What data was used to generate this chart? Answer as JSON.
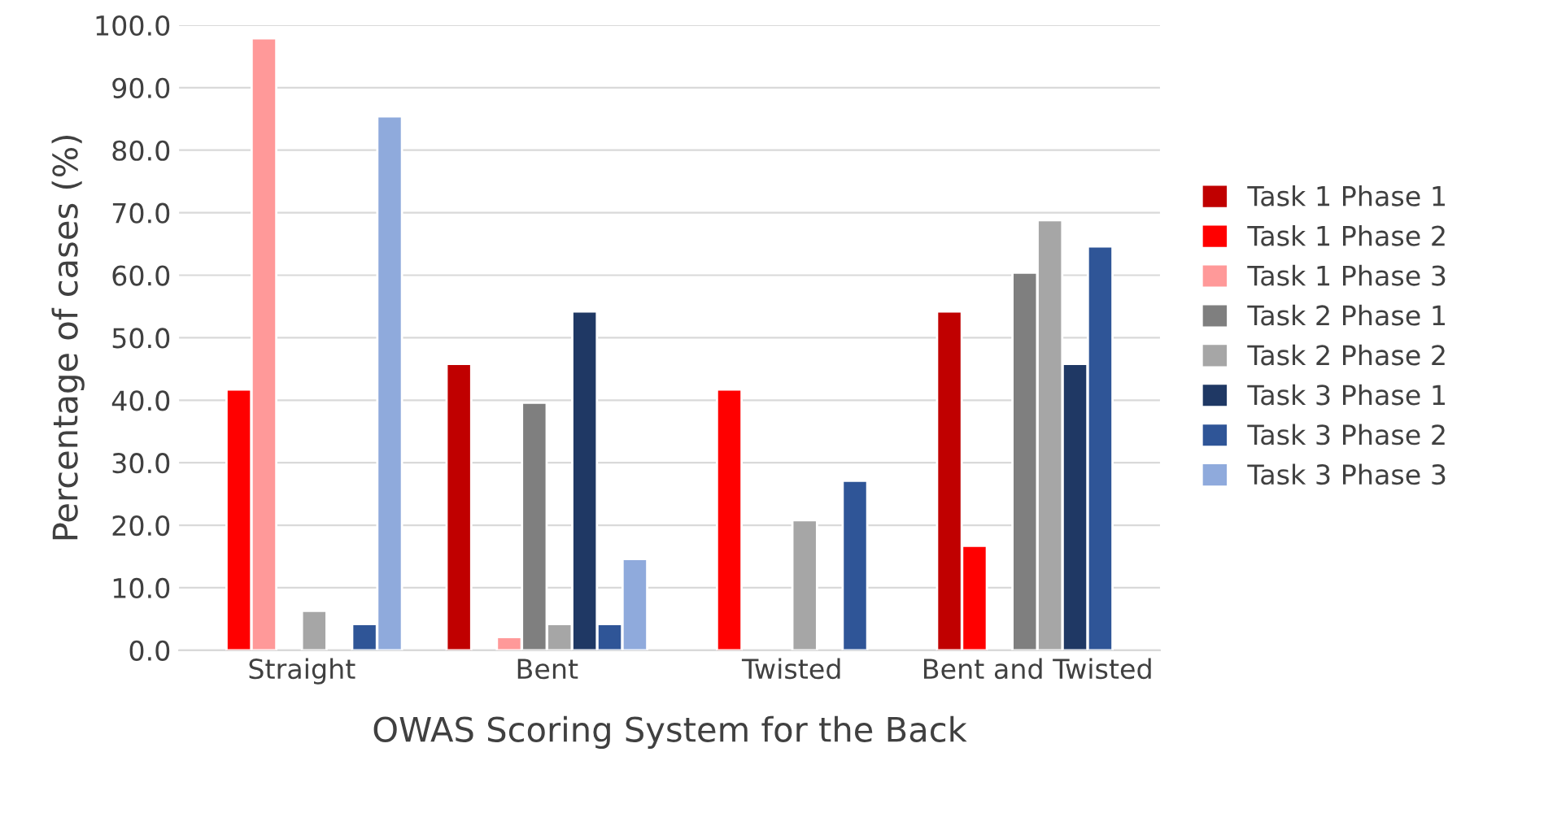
{
  "chart_data": {
    "type": "bar",
    "xlabel": "OWAS Scoring System for the Back",
    "ylabel": "Percentage of cases (%)",
    "categories": [
      "Straight",
      "Bent",
      "Twisted",
      "Bent and Twisted"
    ],
    "series": [
      {
        "name": "Task 1 Phase 1",
        "color": "#c00000",
        "values": [
          null,
          45.8,
          null,
          54.2
        ]
      },
      {
        "name": "Task 1 Phase 2",
        "color": "#ff0000",
        "values": [
          41.7,
          null,
          41.7,
          16.7
        ]
      },
      {
        "name": "Task 1 Phase 3",
        "color": "#ff9999",
        "values": [
          97.9,
          2.1,
          null,
          null
        ]
      },
      {
        "name": "Task 2 Phase 1",
        "color": "#7f7f7f",
        "values": [
          null,
          39.6,
          null,
          60.4
        ]
      },
      {
        "name": "Task 2 Phase 2",
        "color": "#a6a6a6",
        "values": [
          6.3,
          4.2,
          20.8,
          68.8
        ]
      },
      {
        "name": "Task 3 Phase 1",
        "color": "#1f3864",
        "values": [
          null,
          54.2,
          null,
          45.8
        ]
      },
      {
        "name": "Task 3 Phase 2",
        "color": "#2f5597",
        "values": [
          4.2,
          4.2,
          27.1,
          64.6
        ]
      },
      {
        "name": "Task 3 Phase 3",
        "color": "#8faadc",
        "values": [
          85.4,
          14.6,
          null,
          null
        ]
      }
    ],
    "ylim": [
      0,
      100
    ],
    "yticks": [
      {
        "value": 0,
        "label": "0.0"
      },
      {
        "value": 10,
        "label": "10.0"
      },
      {
        "value": 20,
        "label": "20.0"
      },
      {
        "value": 30,
        "label": "30.0"
      },
      {
        "value": 40,
        "label": "40.0"
      },
      {
        "value": 50,
        "label": "50.0"
      },
      {
        "value": 60,
        "label": "60.0"
      },
      {
        "value": 70,
        "label": "70.0"
      },
      {
        "value": 80,
        "label": "80.0"
      },
      {
        "value": 90,
        "label": "90.0"
      },
      {
        "value": 100,
        "label": "100.0"
      }
    ],
    "grid": "y",
    "legend": "right"
  }
}
